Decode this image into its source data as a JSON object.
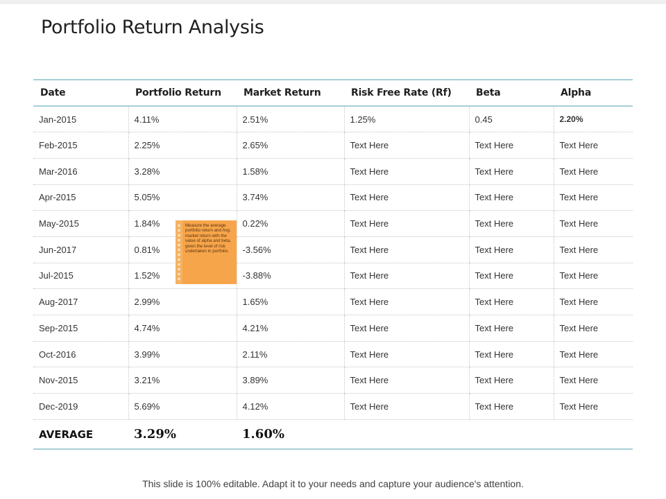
{
  "title": "Portfolio Return Analysis",
  "table": {
    "headers": [
      "Date",
      "Portfolio Return",
      "Market Return",
      "Risk Free Rate (Rf)",
      "Beta",
      "Alpha"
    ],
    "rows": [
      [
        "Jan-2015",
        "4.11%",
        "2.51%",
        "1.25%",
        "0.45",
        "2.20%"
      ],
      [
        "Feb-2015",
        "2.25%",
        "2.65%",
        "Text Here",
        "Text Here",
        "Text Here"
      ],
      [
        "Mar-2016",
        "3.28%",
        "1.58%",
        "Text Here",
        "Text Here",
        "Text Here"
      ],
      [
        "Apr-2015",
        "5.05%",
        "3.74%",
        "Text Here",
        "Text Here",
        "Text Here"
      ],
      [
        "May-2015",
        "1.84%",
        "0.22%",
        "Text Here",
        "Text Here",
        "Text Here"
      ],
      [
        "Jun-2017",
        "0.81%",
        "-3.56%",
        "Text Here",
        "Text Here",
        "Text Here"
      ],
      [
        "Jul-2015",
        "1.52%",
        "-3.88%",
        "Text Here",
        "Text Here",
        "Text Here"
      ],
      [
        "Aug-2017",
        "2.99%",
        "1.65%",
        "Text Here",
        "Text Here",
        "Text Here"
      ],
      [
        "Sep-2015",
        "4.74%",
        "4.21%",
        "Text Here",
        "Text Here",
        "Text Here"
      ],
      [
        "Oct-2016",
        "3.99%",
        "2.11%",
        "Text Here",
        "Text Here",
        "Text Here"
      ],
      [
        "Nov-2015",
        "3.21%",
        "3.89%",
        "Text Here",
        "Text Here",
        "Text Here"
      ],
      [
        "Dec-2019",
        "5.69%",
        "4.12%",
        "Text Here",
        "Text Here",
        "Text Here"
      ]
    ],
    "average": {
      "label": "AVERAGE",
      "portfolio_return": "3.29%",
      "market_return": "1.60%"
    }
  },
  "sticky_note": {
    "text": "Measure the average portfolio return and Avg. market return with the value of alpha and beta, given the level of risk undertaken in portfolio.",
    "color": "#f7a54a"
  },
  "footer": "This slide is 100% editable. Adapt it to your needs and capture your audience's attention.",
  "colors": {
    "rule": "#a5cfd6"
  }
}
